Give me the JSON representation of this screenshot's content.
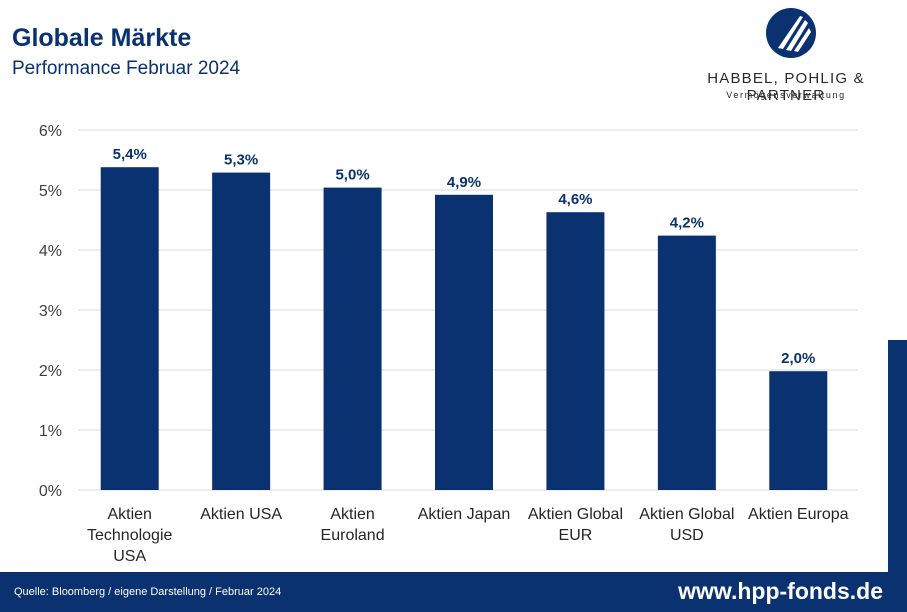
{
  "header": {
    "title": "Globale Märkte",
    "subtitle": "Performance Februar 2024"
  },
  "logo": {
    "name": "HABBEL, POHLIG & PARTNER",
    "tagline": "Vermögensverwaltung",
    "color": "#0a3170"
  },
  "footer": {
    "source": "Quelle: Bloomberg / eigene Darstellung / Februar 2024",
    "website": "www.hpp-fonds.de"
  },
  "chart_data": {
    "type": "bar",
    "categories": [
      [
        "Aktien",
        "Technologie",
        "USA"
      ],
      [
        "Aktien USA"
      ],
      [
        "Aktien",
        "Euroland"
      ],
      [
        "Aktien Japan"
      ],
      [
        "Aktien Global",
        "EUR"
      ],
      [
        "Aktien Global",
        "USD"
      ],
      [
        "Aktien Europa"
      ]
    ],
    "values": [
      5.38,
      5.29,
      5.04,
      4.92,
      4.63,
      4.24,
      1.98
    ],
    "value_labels": [
      "5,4%",
      "5,3%",
      "5,0%",
      "4,9%",
      "4,6%",
      "4,2%",
      "2,0%"
    ],
    "ylim": [
      0,
      6
    ],
    "yticks": [
      0,
      1,
      2,
      3,
      4,
      5,
      6
    ],
    "ytick_labels": [
      "0%",
      "1%",
      "2%",
      "3%",
      "4%",
      "5%",
      "6%"
    ],
    "grid": true,
    "bar_color": "#0a3170"
  }
}
